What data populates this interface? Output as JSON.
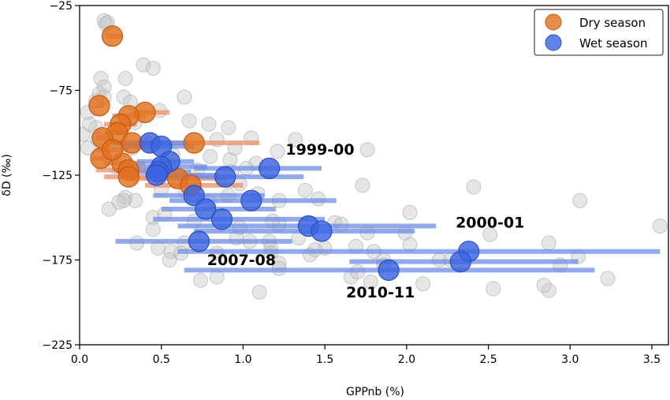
{
  "chart_data": {
    "type": "scatter",
    "title": "",
    "xlabel": "GPPnb (%)",
    "ylabel": "δD (‰)",
    "xlim": [
      0.0,
      3.6
    ],
    "ylim": [
      -225,
      -25
    ],
    "xticks": [
      "0.0",
      "0.5",
      "1.0",
      "1.5",
      "2.0",
      "2.5",
      "3.0",
      "3.5"
    ],
    "xtick_values": [
      0.0,
      0.5,
      1.0,
      1.5,
      2.0,
      2.5,
      3.0,
      3.5
    ],
    "yticks": [
      "−25",
      "−75",
      "−125",
      "−175",
      "−225"
    ],
    "ytick_values": [
      -25,
      -75,
      -125,
      -175,
      -225
    ],
    "grid": false,
    "legend": {
      "placement": "top-right",
      "entries": [
        {
          "label": "Dry season",
          "color": "#e07020"
        },
        {
          "label": "Wet season",
          "color": "#3a64e0"
        }
      ]
    },
    "colors": {
      "dry": "#e07020",
      "wet": "#3a64e0",
      "background_points": "#c8c8c8"
    },
    "series": [
      {
        "name": "Background",
        "points": [
          [
            0.15,
            -34
          ],
          [
            0.17,
            -35
          ],
          [
            0.16,
            -36
          ],
          [
            0.39,
            -60
          ],
          [
            0.45,
            -62
          ],
          [
            0.13,
            -68
          ],
          [
            0.15,
            -73
          ],
          [
            0.28,
            -68
          ],
          [
            0.1,
            -81
          ],
          [
            0.27,
            -79
          ],
          [
            0.12,
            -77
          ],
          [
            0.15,
            -79
          ],
          [
            0.31,
            -82
          ],
          [
            0.05,
            -88
          ],
          [
            0.64,
            -79
          ],
          [
            0.67,
            -93
          ],
          [
            0.49,
            -87
          ],
          [
            0.1,
            -97
          ],
          [
            0.34,
            -94
          ],
          [
            0.02,
            -101
          ],
          [
            0.05,
            -109
          ],
          [
            0.79,
            -95
          ],
          [
            0.91,
            -97
          ],
          [
            1.05,
            -103
          ],
          [
            1.32,
            -104
          ],
          [
            1.21,
            -111
          ],
          [
            1.76,
            -110
          ],
          [
            1.08,
            -118
          ],
          [
            0.42,
            -107
          ],
          [
            0.57,
            -113
          ],
          [
            0.92,
            -116
          ],
          [
            1.02,
            -121
          ],
          [
            1.22,
            -140
          ],
          [
            1.09,
            -136
          ],
          [
            0.28,
            -138
          ],
          [
            0.34,
            -140
          ],
          [
            0.5,
            -133
          ],
          [
            0.65,
            -135
          ],
          [
            0.79,
            -141
          ],
          [
            0.91,
            -137
          ],
          [
            0.45,
            -150
          ],
          [
            0.52,
            -148
          ],
          [
            0.7,
            -152
          ],
          [
            0.98,
            -156
          ],
          [
            1.16,
            -164
          ],
          [
            1.17,
            -171
          ],
          [
            0.64,
            -165
          ],
          [
            0.56,
            -170
          ],
          [
            0.45,
            -157
          ],
          [
            0.27,
            -140
          ],
          [
            0.24,
            -141
          ],
          [
            1.38,
            -134
          ],
          [
            1.46,
            -139
          ],
          [
            1.76,
            -159
          ],
          [
            1.99,
            -159
          ],
          [
            1.8,
            -170
          ],
          [
            2.02,
            -147
          ],
          [
            2.02,
            -166
          ],
          [
            1.86,
            -175
          ],
          [
            1.5,
            -168
          ],
          [
            1.41,
            -172
          ],
          [
            1.22,
            -177
          ],
          [
            1.22,
            -180
          ],
          [
            1.17,
            -168
          ],
          [
            1.34,
            -162
          ],
          [
            1.22,
            -154
          ],
          [
            1.56,
            -153
          ],
          [
            1.44,
            -169
          ],
          [
            1.66,
            -185
          ],
          [
            1.78,
            -188
          ],
          [
            1.7,
            -182
          ],
          [
            1.86,
            -178
          ],
          [
            2.1,
            -189
          ],
          [
            2.53,
            -192
          ],
          [
            2.87,
            -193
          ],
          [
            2.2,
            -175
          ],
          [
            2.27,
            -175
          ],
          [
            2.51,
            -160
          ],
          [
            2.84,
            -190
          ],
          [
            3.06,
            -140
          ],
          [
            3.05,
            -173
          ],
          [
            3.23,
            -186
          ],
          [
            2.94,
            -178
          ],
          [
            3.55,
            -155
          ],
          [
            2.87,
            -165
          ],
          [
            1.1,
            -194
          ],
          [
            0.74,
            -187
          ],
          [
            0.55,
            -175
          ],
          [
            0.35,
            -165
          ],
          [
            1.73,
            -131
          ],
          [
            2.41,
            -132
          ],
          [
            1.6,
            -154
          ],
          [
            1.69,
            -167
          ],
          [
            0.96,
            -162
          ],
          [
            1.04,
            -164
          ],
          [
            0.84,
            -171
          ],
          [
            0.32,
            -109
          ],
          [
            0.22,
            -120
          ],
          [
            0.72,
            -122
          ],
          [
            0.68,
            -130
          ],
          [
            0.84,
            -104
          ],
          [
            0.95,
            -109
          ],
          [
            0.18,
            -145
          ],
          [
            1.18,
            -152
          ],
          [
            0.84,
            -185
          ],
          [
            0.62,
            -171
          ],
          [
            0.48,
            -168
          ],
          [
            0.93,
            -123
          ],
          [
            0.8,
            -114
          ],
          [
            0.98,
            -130
          ],
          [
            0.11,
            -104
          ],
          [
            0.06,
            -95
          ]
        ]
      },
      {
        "name": "Dry season",
        "points": [
          {
            "x": 0.2,
            "y": -43,
            "xerr": [
              0.16,
              0.26
            ]
          },
          {
            "x": 0.12,
            "y": -84,
            "xerr": [
              0.1,
              0.15
            ]
          },
          {
            "x": 0.4,
            "y": -88,
            "xerr": [
              0.32,
              0.55
            ]
          },
          {
            "x": 0.3,
            "y": -90,
            "xerr": [
              0.2,
              0.4
            ]
          },
          {
            "x": 0.25,
            "y": -95,
            "xerr": [
              0.15,
              0.35
            ]
          },
          {
            "x": 0.23,
            "y": -100,
            "xerr": [
              0.15,
              0.3
            ]
          },
          {
            "x": 0.14,
            "y": -103,
            "xerr": [
              0.1,
              0.2
            ]
          },
          {
            "x": 0.32,
            "y": -106,
            "xerr": [
              0.2,
              0.45
            ]
          },
          {
            "x": 0.7,
            "y": -106,
            "xerr": [
              0.35,
              1.1
            ]
          },
          {
            "x": 0.13,
            "y": -115,
            "xerr": [
              0.08,
              0.2
            ]
          },
          {
            "x": 0.26,
            "y": -118,
            "xerr": [
              0.15,
              0.4
            ]
          },
          {
            "x": 0.3,
            "y": -122,
            "xerr": [
              0.1,
              0.45
            ]
          },
          {
            "x": 0.3,
            "y": -126,
            "xerr": [
              0.15,
              0.5
            ]
          },
          {
            "x": 0.6,
            "y": -127,
            "xerr": [
              0.3,
              0.9
            ]
          },
          {
            "x": 0.68,
            "y": -131,
            "xerr": [
              0.4,
              1.0
            ]
          },
          {
            "x": 0.2,
            "y": -110,
            "xerr": [
              0.1,
              0.3
            ]
          }
        ]
      },
      {
        "name": "Wet season",
        "points": [
          {
            "x": 0.43,
            "y": -106,
            "xerr": [
              0.2,
              0.66
            ]
          },
          {
            "x": 0.5,
            "y": -108,
            "xerr": [
              0.25,
              0.7
            ]
          },
          {
            "x": 0.55,
            "y": -117,
            "xerr": [
              0.35,
              0.7
            ]
          },
          {
            "x": 0.5,
            "y": -120,
            "xerr": [
              0.32,
              0.78
            ]
          },
          {
            "x": 0.48,
            "y": -123,
            "xerr": [
              0.3,
              0.68
            ]
          },
          {
            "x": 0.47,
            "y": -125,
            "xerr": [
              0.4,
              0.85
            ]
          },
          {
            "x": 1.16,
            "y": -121,
            "xerr": [
              0.7,
              1.48
            ],
            "label": "1999-00"
          },
          {
            "x": 0.89,
            "y": -126,
            "xerr": [
              0.5,
              1.37
            ]
          },
          {
            "x": 0.7,
            "y": -137,
            "xerr": [
              0.45,
              1.13
            ]
          },
          {
            "x": 1.05,
            "y": -140,
            "xerr": [
              0.55,
              1.57
            ]
          },
          {
            "x": 0.77,
            "y": -145,
            "xerr": [
              0.5,
              1.2
            ]
          },
          {
            "x": 0.87,
            "y": -151,
            "xerr": [
              0.45,
              1.5
            ]
          },
          {
            "x": 1.4,
            "y": -155,
            "xerr": [
              0.6,
              2.18
            ]
          },
          {
            "x": 1.48,
            "y": -158,
            "xerr": [
              0.7,
              2.05
            ]
          },
          {
            "x": 0.73,
            "y": -164,
            "xerr": [
              0.22,
              1.3
            ],
            "label": "2007-08"
          },
          {
            "x": 2.38,
            "y": -170,
            "xerr": [
              0.6,
              3.55
            ],
            "label": "2000-01"
          },
          {
            "x": 2.33,
            "y": -176,
            "xerr": [
              1.65,
              3.05
            ]
          },
          {
            "x": 1.89,
            "y": -181,
            "xerr": [
              0.64,
              3.15
            ],
            "label": "2010-11"
          }
        ]
      }
    ],
    "annotations": [
      {
        "text": "1999-00",
        "x": 1.26,
        "y": -113
      },
      {
        "text": "2007-08",
        "x": 0.78,
        "y": -178
      },
      {
        "text": "2000-01",
        "x": 2.3,
        "y": -156
      },
      {
        "text": "2010-11",
        "x": 1.63,
        "y": -197
      }
    ]
  }
}
